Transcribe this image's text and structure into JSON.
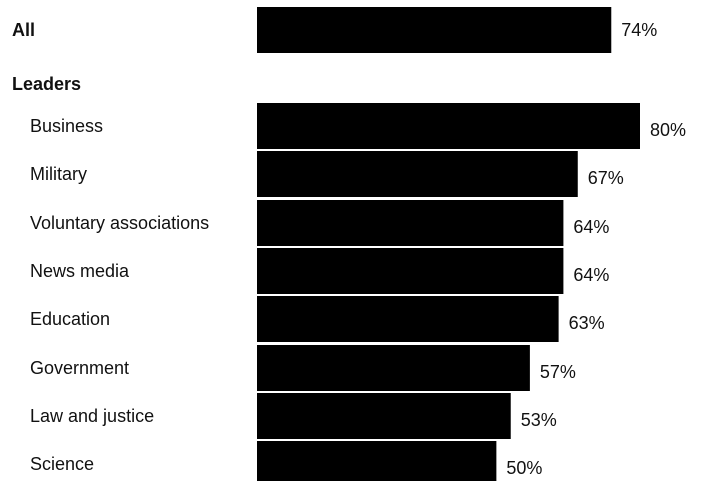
{
  "chart_data": {
    "type": "bar",
    "orientation": "horizontal",
    "groups": [
      {
        "label": "",
        "categories": [
          "All"
        ],
        "values": [
          74
        ],
        "bold": true
      },
      {
        "label": "Leaders",
        "categories": [
          "Business",
          "Military",
          "Voluntary associations",
          "News media",
          "Education",
          "Government",
          "Law and justice",
          "Science"
        ],
        "values": [
          80,
          67,
          64,
          64,
          63,
          57,
          53,
          50
        ],
        "bold": false
      }
    ],
    "value_suffix": "%",
    "xlim": [
      0,
      80
    ],
    "bar_color": "#000000",
    "grid": false
  }
}
